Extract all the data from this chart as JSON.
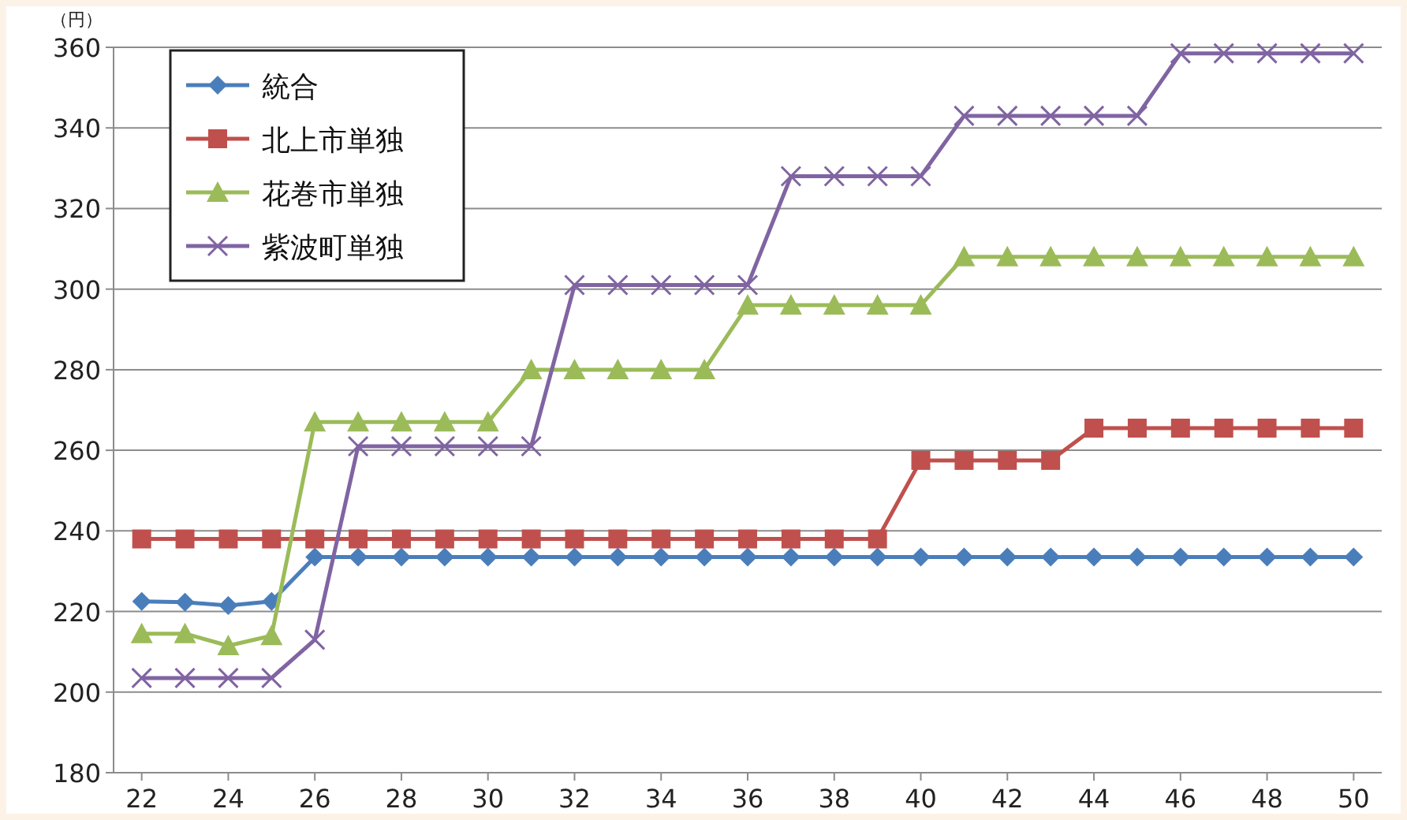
{
  "chart_data": {
    "type": "line",
    "ylabel": "（円）",
    "x": [
      22,
      23,
      24,
      25,
      26,
      27,
      28,
      29,
      30,
      31,
      32,
      33,
      34,
      35,
      36,
      37,
      38,
      39,
      40,
      41,
      42,
      43,
      44,
      45,
      46,
      47,
      48,
      49,
      50
    ],
    "xlim": [
      21.35,
      50.65
    ],
    "xticks": [
      22,
      24,
      26,
      28,
      30,
      32,
      34,
      36,
      38,
      40,
      42,
      44,
      46,
      48,
      50
    ],
    "ylim": [
      180,
      360
    ],
    "yticks": [
      180,
      200,
      220,
      240,
      260,
      280,
      300,
      320,
      340,
      360
    ],
    "grid": "y",
    "legend": "top left",
    "series": [
      {
        "name": "統合",
        "color": "#4a7ebb",
        "marker": "diamond",
        "values": [
          222.5,
          222.3,
          221.5,
          222.5,
          233.5,
          233.5,
          233.5,
          233.5,
          233.5,
          233.5,
          233.5,
          233.5,
          233.5,
          233.5,
          233.5,
          233.5,
          233.5,
          233.5,
          233.5,
          233.5,
          233.5,
          233.5,
          233.5,
          233.5,
          233.5,
          233.5,
          233.5,
          233.5,
          233.5
        ]
      },
      {
        "name": "北上市単独",
        "color": "#c0504d",
        "marker": "square",
        "values": [
          238,
          238,
          238,
          238,
          238,
          238,
          238,
          238,
          238,
          238,
          238,
          238,
          238,
          238,
          238,
          238,
          238,
          238,
          257.5,
          257.5,
          257.5,
          257.5,
          265.5,
          265.5,
          265.5,
          265.5,
          265.5,
          265.5,
          265.5
        ]
      },
      {
        "name": "花巻市単独",
        "color": "#9bbb59",
        "marker": "triangle",
        "values": [
          214.5,
          214.5,
          211.5,
          214,
          267,
          267,
          267,
          267,
          267,
          280,
          280,
          280,
          280,
          280,
          296,
          296,
          296,
          296,
          296,
          308,
          308,
          308,
          308,
          308,
          308,
          308,
          308,
          308,
          308
        ]
      },
      {
        "name": "紫波町単独",
        "color": "#8064a2",
        "marker": "cross",
        "values": [
          203.5,
          203.5,
          203.5,
          203.5,
          213,
          261,
          261,
          261,
          261,
          261,
          301,
          301,
          301,
          301,
          301,
          328,
          328,
          328,
          328,
          343,
          343,
          343,
          343,
          343,
          358.5,
          358.5,
          358.5,
          358.5,
          358.5
        ]
      }
    ]
  }
}
